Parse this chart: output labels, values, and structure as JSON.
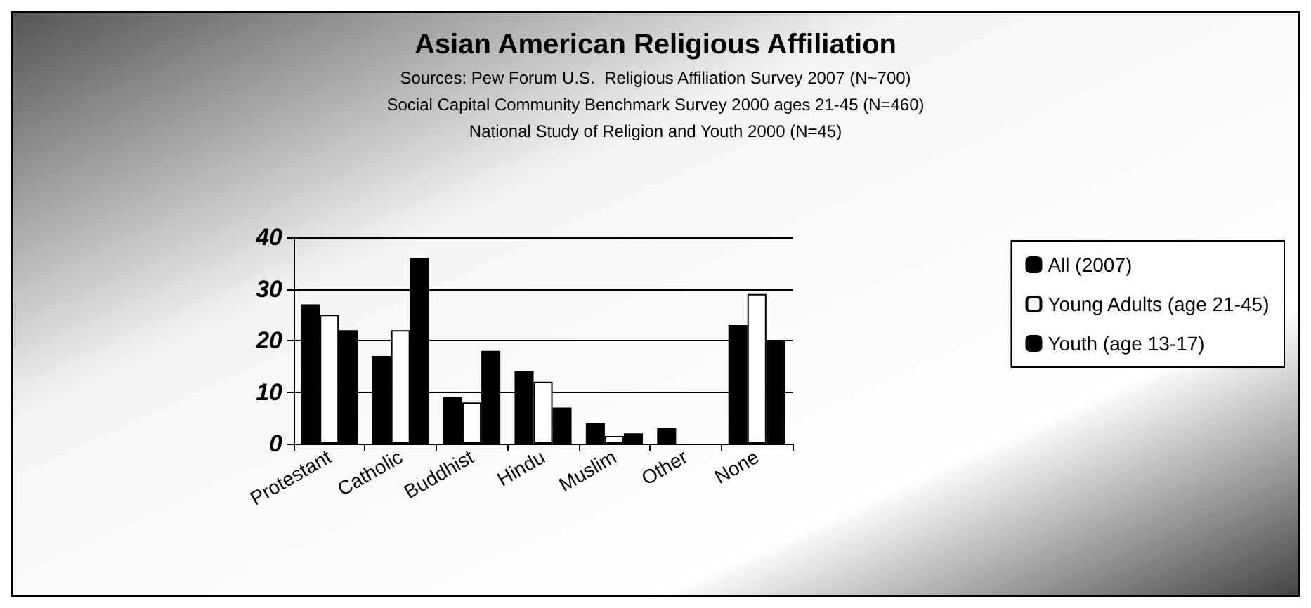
{
  "chart_data": {
    "type": "bar",
    "title": "Asian American Religious Affiliation",
    "subtitle": "Sources: Pew Forum U.S.  Religious Affiliation Survey 2007 (N~700)\nSocial Capital Community Benchmark Survey 2000 ages 21-45 (N=460)\nNational Study of Religion and Youth 2000 (N=45)",
    "categories": [
      "Protestant",
      "Catholic",
      "Buddhist",
      "Hindu",
      "Muslim",
      "Other",
      "None"
    ],
    "series": [
      {
        "name": "All (2007)",
        "color": "#000000",
        "values": [
          27,
          17,
          9,
          14,
          4,
          3,
          23
        ]
      },
      {
        "name": "Young Adults (age 21-45)",
        "color": "#ffffff",
        "values": [
          25,
          22,
          8,
          12,
          1.5,
          null,
          29
        ]
      },
      {
        "name": "Youth (age 13-17)",
        "color": "#000000",
        "values": [
          22,
          36,
          18,
          7,
          2,
          null,
          20
        ]
      }
    ],
    "ylim": [
      0,
      40
    ],
    "yticks": [
      0,
      10,
      20,
      30,
      40
    ],
    "grid": "y",
    "legend": "right"
  }
}
